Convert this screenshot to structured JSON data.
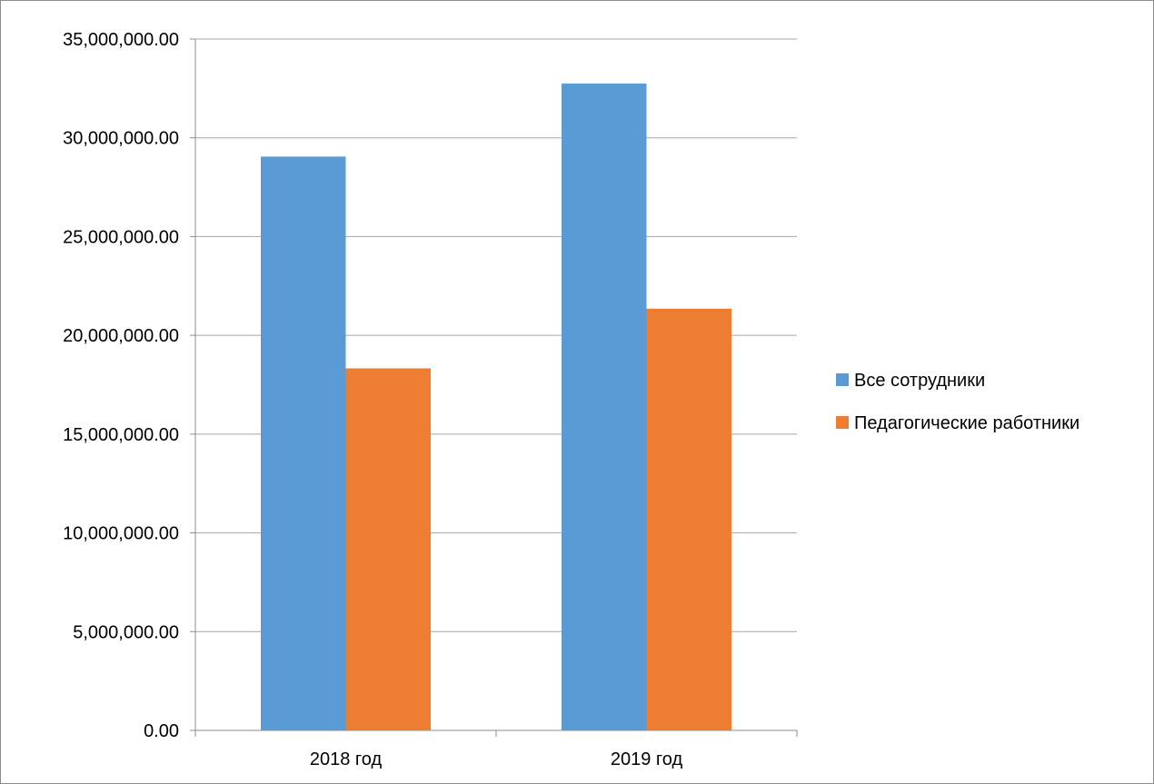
{
  "chart_data": {
    "type": "bar",
    "title": "",
    "xlabel": "",
    "ylabel": "",
    "categories": [
      "2018 год",
      "2019 год"
    ],
    "series": [
      {
        "name": "Все сотрудники",
        "color": "#5B9BD5",
        "values": [
          29050000,
          32750000
        ]
      },
      {
        "name": "Педагогические работники",
        "color": "#ED7D31",
        "values": [
          18330000,
          21350000
        ]
      }
    ],
    "ylim": [
      0,
      35000000
    ],
    "y_ticks": [
      0,
      5000000,
      10000000,
      15000000,
      20000000,
      25000000,
      30000000,
      35000000
    ],
    "y_tick_labels": [
      "0.00",
      "5,000,000.00",
      "10,000,000.00",
      "15,000,000.00",
      "20,000,000.00",
      "25,000,000.00",
      "30,000,000.00",
      "35,000,000.00"
    ],
    "grid": true,
    "legend_position": "right"
  }
}
